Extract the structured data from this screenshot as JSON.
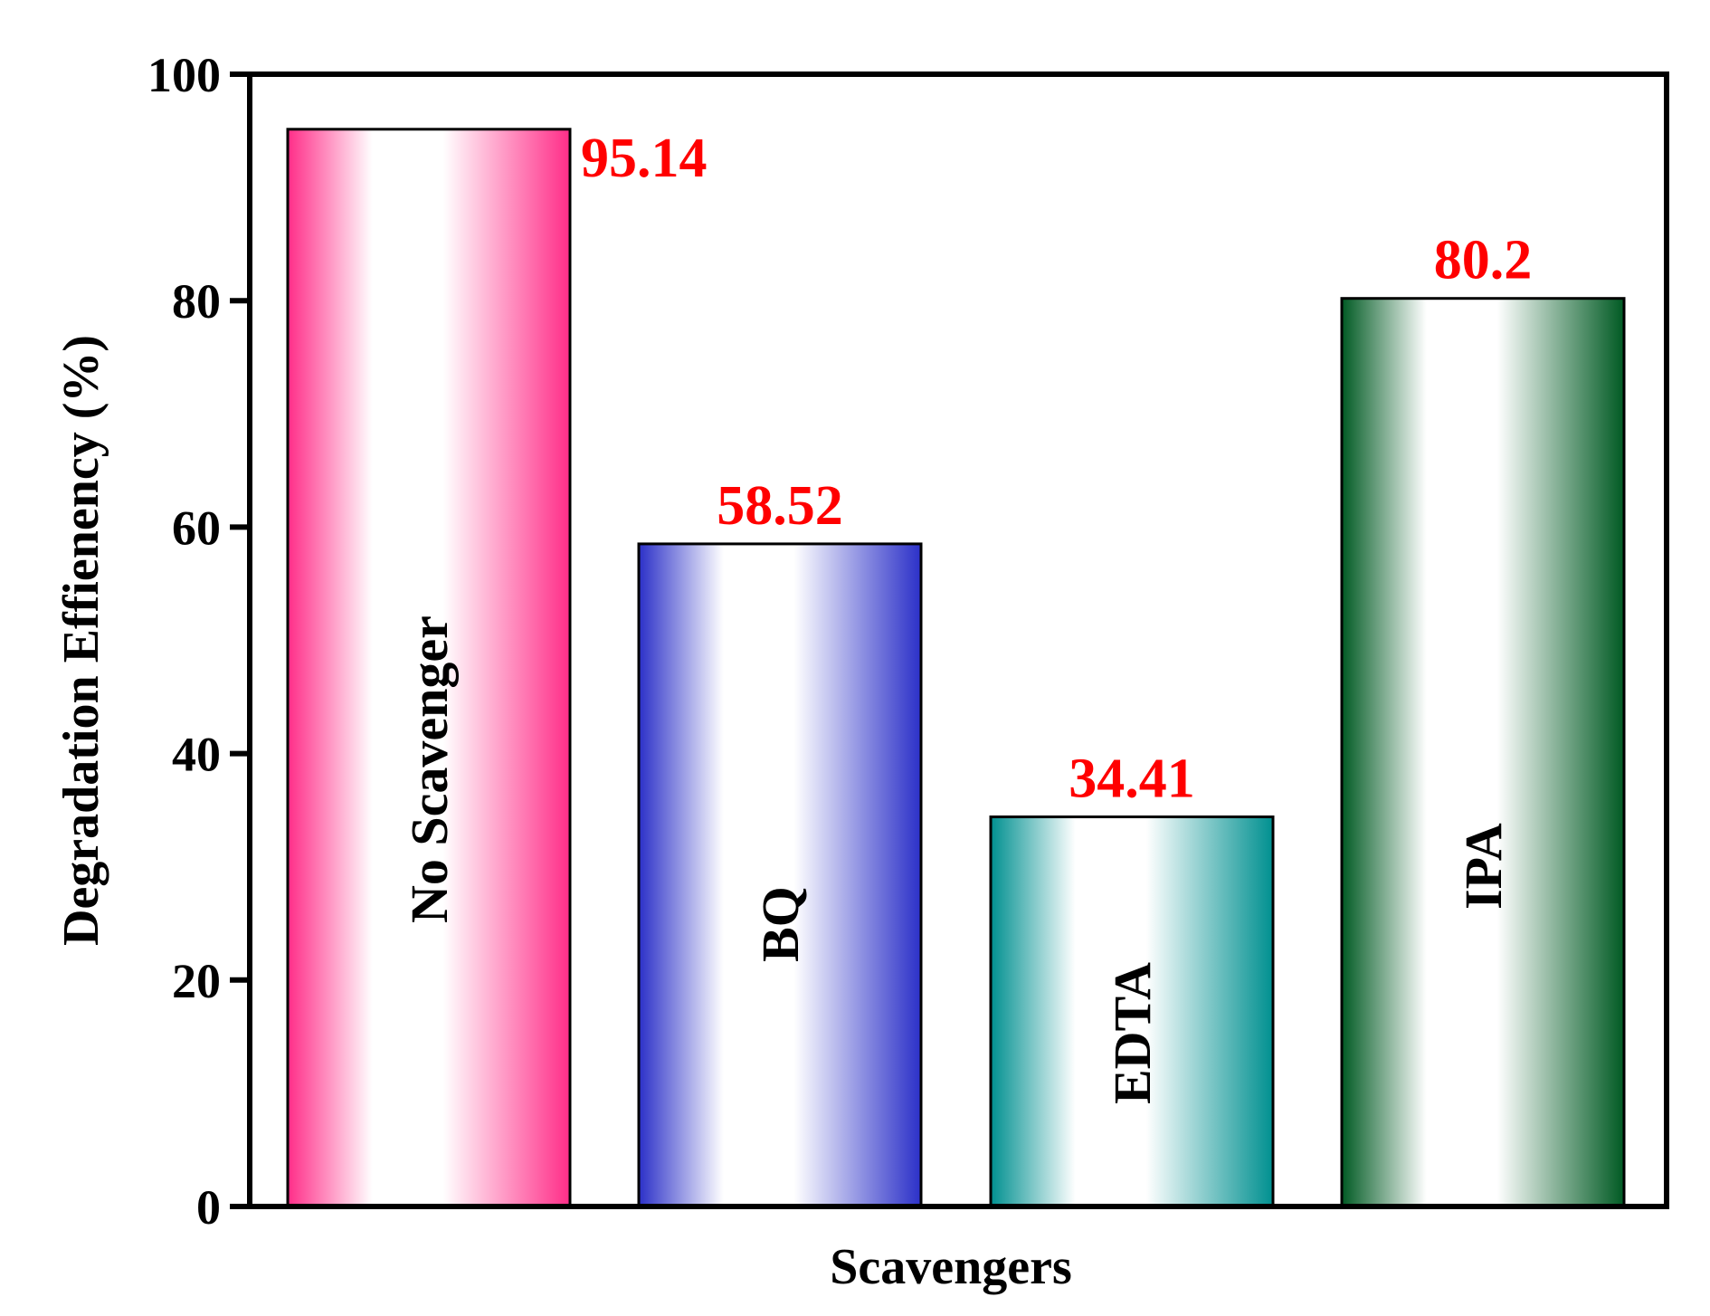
{
  "chart_data": {
    "type": "bar",
    "title": "",
    "xlabel": "Scavengers",
    "ylabel": "Degradation Effienency (%)",
    "ylim": [
      0,
      100
    ],
    "yticks": [
      0,
      20,
      40,
      60,
      80,
      100
    ],
    "grid": false,
    "legend": "none",
    "categories": [
      "No Scavenger",
      "BQ",
      "EDTA",
      "IPA"
    ],
    "values": [
      95.14,
      58.52,
      34.41,
      80.2
    ],
    "value_labels": [
      "95.14",
      "58.52",
      "34.41",
      "80.2"
    ],
    "colors": [
      "#ff2d88",
      "#2b30c8",
      "#009090",
      "#005a23"
    ],
    "label_color": "#ff0000"
  }
}
